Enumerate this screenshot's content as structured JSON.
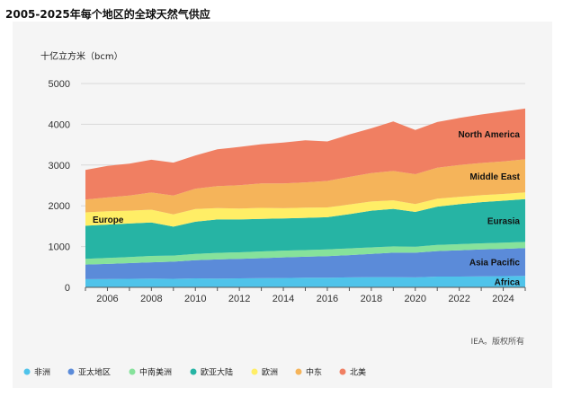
{
  "title": "2005-2025年每个地区的全球天然气供应",
  "source": "IEA。版权所有",
  "chart_data": {
    "type": "area",
    "stacked": true,
    "title": "2005-2025年每个地区的全球天然气供应",
    "ylabel": "十亿立方米（bcm）",
    "xlabel": "",
    "ylim": [
      0,
      5000
    ],
    "xlim": [
      2005,
      2025
    ],
    "yticks": [
      0,
      1000,
      2000,
      3000,
      4000,
      5000
    ],
    "xticks": [
      2006,
      2008,
      2010,
      2012,
      2014,
      2016,
      2018,
      2020,
      2022,
      2024
    ],
    "grid": true,
    "legend_position": "bottom",
    "x": [
      2005,
      2006,
      2007,
      2008,
      2009,
      2010,
      2011,
      2012,
      2013,
      2014,
      2015,
      2016,
      2017,
      2018,
      2019,
      2020,
      2021,
      2022,
      2023,
      2024,
      2025
    ],
    "series": [
      {
        "name": "非洲",
        "label": "Africa",
        "color": "#4fc3ea",
        "values": [
          200,
          205,
          210,
          215,
          210,
          220,
          215,
          220,
          225,
          230,
          235,
          235,
          245,
          250,
          250,
          245,
          265,
          265,
          270,
          275,
          280
        ]
      },
      {
        "name": "亚太地区",
        "label": "Asia Pacific",
        "color": "#5b8bd9",
        "values": [
          360,
          370,
          385,
          400,
          420,
          445,
          470,
          480,
          490,
          505,
          515,
          530,
          545,
          570,
          600,
          605,
          625,
          645,
          660,
          670,
          685
        ]
      },
      {
        "name": "中南美洲",
        "label": "",
        "color": "#86e29b",
        "values": [
          140,
          145,
          150,
          155,
          150,
          155,
          160,
          160,
          165,
          165,
          165,
          165,
          165,
          160,
          155,
          145,
          150,
          150,
          150,
          150,
          150
        ]
      },
      {
        "name": "欧亚大陆",
        "label": "Eurasia",
        "color": "#26b4a4",
        "values": [
          810,
          820,
          820,
          820,
          710,
          790,
          820,
          805,
          800,
          790,
          790,
          790,
          840,
          900,
          920,
          855,
          940,
          980,
          1010,
          1030,
          1050
        ]
      },
      {
        "name": "欧洲",
        "label": "Europe",
        "color": "#ffee66",
        "values": [
          330,
          325,
          315,
          315,
          300,
          310,
          280,
          270,
          270,
          250,
          250,
          240,
          235,
          225,
          210,
          195,
          195,
          180,
          170,
          165,
          165
        ]
      },
      {
        "name": "中东",
        "label": "Middle East",
        "color": "#f5b45a",
        "values": [
          315,
          340,
          370,
          420,
          460,
          500,
          540,
          570,
          600,
          610,
          620,
          650,
          680,
          700,
          720,
          730,
          760,
          780,
          790,
          800,
          810
        ]
      },
      {
        "name": "北美",
        "label": "North America",
        "color": "#f07f62",
        "values": [
          725,
          775,
          785,
          805,
          810,
          815,
          900,
          940,
          960,
          1000,
          1030,
          970,
          1040,
          1095,
          1215,
          1085,
          1120,
          1155,
          1190,
          1220,
          1245
        ]
      }
    ]
  }
}
